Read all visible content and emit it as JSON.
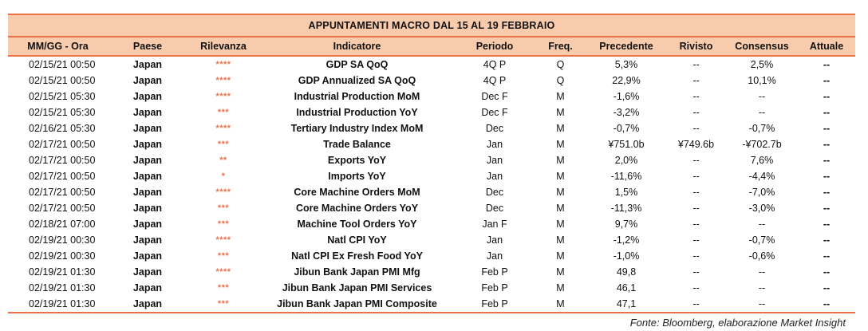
{
  "title": "APPUNTAMENTI MACRO DAL 15 AL 19 FEBBRAIO",
  "headers": {
    "date": "MM/GG - Ora",
    "country": "Paese",
    "relevance": "Rilevanza",
    "indicator": "Indicatore",
    "period": "Periodo",
    "freq": "Freq.",
    "previous": "Precedente",
    "revised": "Rivisto",
    "consensus": "Consensus",
    "actual": "Attuale"
  },
  "rows": [
    {
      "date": "02/15/21 00:50",
      "country": "Japan",
      "relevance": "****",
      "indicator": "GDP SA QoQ",
      "period": "4Q P",
      "freq": "Q",
      "previous": "5,3%",
      "revised": "--",
      "consensus": "2,5%",
      "actual": "--"
    },
    {
      "date": "02/15/21 00:50",
      "country": "Japan",
      "relevance": "****",
      "indicator": "GDP Annualized SA QoQ",
      "period": "4Q P",
      "freq": "Q",
      "previous": "22,9%",
      "revised": "--",
      "consensus": "10,1%",
      "actual": "--"
    },
    {
      "date": "02/15/21 05:30",
      "country": "Japan",
      "relevance": "****",
      "indicator": "Industrial Production MoM",
      "period": "Dec F",
      "freq": "M",
      "previous": "-1,6%",
      "revised": "--",
      "consensus": "--",
      "actual": "--"
    },
    {
      "date": "02/15/21 05:30",
      "country": "Japan",
      "relevance": "***",
      "indicator": "Industrial Production YoY",
      "period": "Dec F",
      "freq": "M",
      "previous": "-3,2%",
      "revised": "--",
      "consensus": "--",
      "actual": "--"
    },
    {
      "date": "02/16/21 05:30",
      "country": "Japan",
      "relevance": "****",
      "indicator": "Tertiary Industry Index MoM",
      "period": "Dec",
      "freq": "M",
      "previous": "-0,7%",
      "revised": "--",
      "consensus": "-0,7%",
      "actual": "--"
    },
    {
      "date": "02/17/21 00:50",
      "country": "Japan",
      "relevance": "***",
      "indicator": "Trade Balance",
      "period": "Jan",
      "freq": "M",
      "previous": "¥751.0b",
      "revised": "¥749.6b",
      "consensus": "-¥702.7b",
      "actual": "--"
    },
    {
      "date": "02/17/21 00:50",
      "country": "Japan",
      "relevance": "**",
      "indicator": "Exports YoY",
      "period": "Jan",
      "freq": "M",
      "previous": "2,0%",
      "revised": "--",
      "consensus": "7,6%",
      "actual": "--"
    },
    {
      "date": "02/17/21 00:50",
      "country": "Japan",
      "relevance": "*",
      "indicator": "Imports YoY",
      "period": "Jan",
      "freq": "M",
      "previous": "-11,6%",
      "revised": "--",
      "consensus": "-4,4%",
      "actual": "--"
    },
    {
      "date": "02/17/21 00:50",
      "country": "Japan",
      "relevance": "****",
      "indicator": "Core Machine Orders MoM",
      "period": "Dec",
      "freq": "M",
      "previous": "1,5%",
      "revised": "--",
      "consensus": "-7,0%",
      "actual": "--"
    },
    {
      "date": "02/17/21 00:50",
      "country": "Japan",
      "relevance": "***",
      "indicator": "Core Machine Orders YoY",
      "period": "Dec",
      "freq": "M",
      "previous": "-11,3%",
      "revised": "--",
      "consensus": "-3,0%",
      "actual": "--"
    },
    {
      "date": "02/18/21 07:00",
      "country": "Japan",
      "relevance": "***",
      "indicator": "Machine Tool Orders YoY",
      "period": "Jan F",
      "freq": "M",
      "previous": "9,7%",
      "revised": "--",
      "consensus": "--",
      "actual": "--"
    },
    {
      "date": "02/19/21 00:30",
      "country": "Japan",
      "relevance": "****",
      "indicator": "Natl CPI YoY",
      "period": "Jan",
      "freq": "M",
      "previous": "-1,2%",
      "revised": "--",
      "consensus": "-0,7%",
      "actual": "--"
    },
    {
      "date": "02/19/21 00:30",
      "country": "Japan",
      "relevance": "***",
      "indicator": "Natl CPI Ex Fresh Food YoY",
      "period": "Jan",
      "freq": "M",
      "previous": "-1,0%",
      "revised": "--",
      "consensus": "-0,6%",
      "actual": "--"
    },
    {
      "date": "02/19/21 01:30",
      "country": "Japan",
      "relevance": "****",
      "indicator": "Jibun Bank Japan PMI Mfg",
      "period": "Feb P",
      "freq": "M",
      "previous": "49,8",
      "revised": "--",
      "consensus": "--",
      "actual": "--"
    },
    {
      "date": "02/19/21 01:30",
      "country": "Japan",
      "relevance": "***",
      "indicator": "Jibun Bank Japan PMI Services",
      "period": "Feb P",
      "freq": "M",
      "previous": "46,1",
      "revised": "--",
      "consensus": "--",
      "actual": "--"
    },
    {
      "date": "02/19/21 01:30",
      "country": "Japan",
      "relevance": "***",
      "indicator": "Jibun Bank Japan PMI Composite",
      "period": "Feb P",
      "freq": "M",
      "previous": "47,1",
      "revised": "--",
      "consensus": "--",
      "actual": "--"
    }
  ],
  "source": "Fonte: Bloomberg, elaborazione Market Insight",
  "colors": {
    "header_fill": "#f9cbad",
    "accent": "#e8734a"
  }
}
